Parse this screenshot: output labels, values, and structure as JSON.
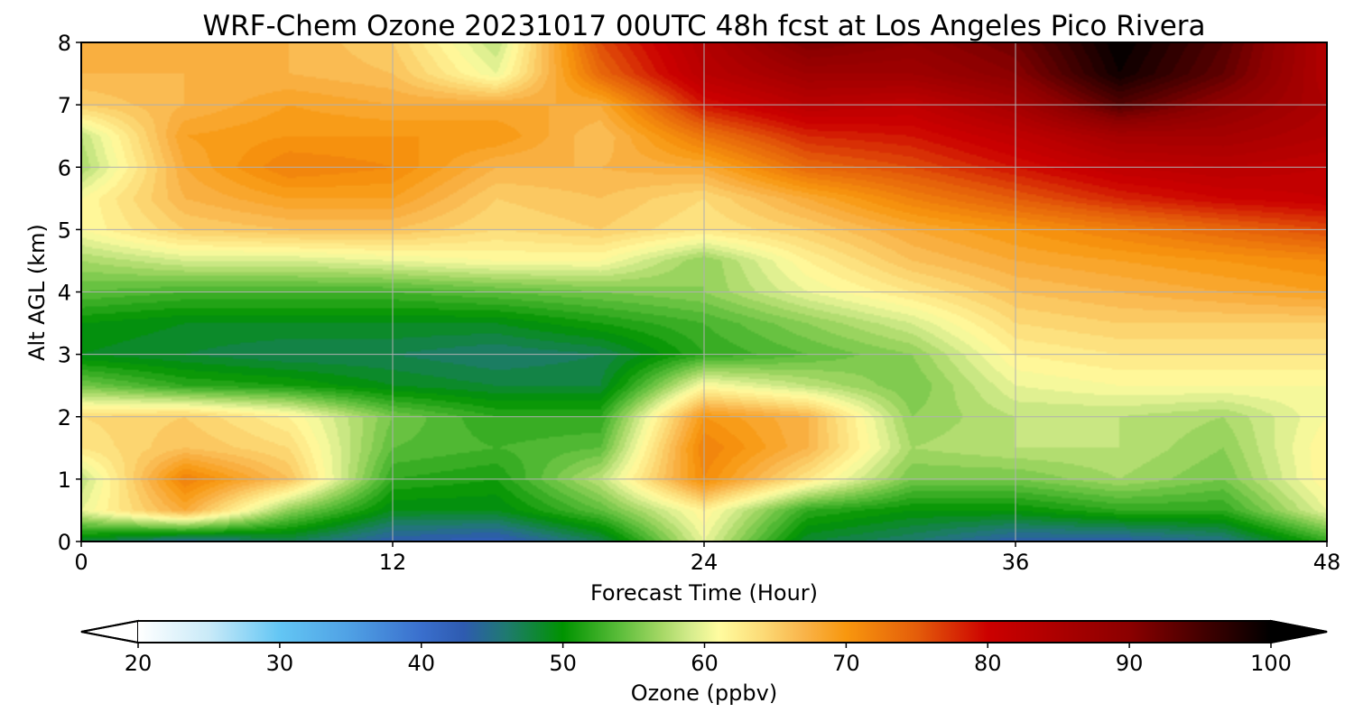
{
  "chart_data": {
    "type": "heatmap",
    "title": "WRF-Chem Ozone  20231017 00UTC 48h fcst at Los Angeles Pico Rivera",
    "xlabel": "Forecast Time (Hour)",
    "ylabel": "Alt AGL (km)",
    "xlim": [
      0,
      48
    ],
    "ylim": [
      0,
      8
    ],
    "x_ticks": [
      "0",
      "12",
      "24",
      "36",
      "48"
    ],
    "x_tick_values": [
      0,
      12,
      24,
      36,
      48
    ],
    "y_ticks": [
      "0",
      "1",
      "2",
      "3",
      "4",
      "5",
      "6",
      "7",
      "8"
    ],
    "y_tick_values": [
      0,
      1,
      2,
      3,
      4,
      5,
      6,
      7,
      8
    ],
    "grid": true,
    "x_hours": [
      0,
      4,
      8,
      12,
      16,
      20,
      24,
      28,
      32,
      36,
      40,
      44,
      48
    ],
    "y_km": [
      0,
      0.5,
      1,
      1.5,
      2,
      2.5,
      3,
      3.5,
      4,
      4.5,
      5,
      5.5,
      6,
      6.5,
      7,
      7.5,
      8
    ],
    "values_ppbv": [
      [
        48,
        44,
        47,
        43,
        42,
        47,
        60,
        48,
        46,
        43,
        43,
        45,
        52
      ],
      [
        60,
        68,
        56,
        49,
        49,
        54,
        62,
        52,
        50,
        50,
        52,
        52,
        60
      ],
      [
        58,
        72,
        66,
        52,
        51,
        58,
        71,
        63,
        55,
        55,
        57,
        55,
        62
      ],
      [
        63,
        66,
        64,
        54,
        53,
        54,
        72,
        67,
        57,
        58,
        58,
        56,
        62
      ],
      [
        64,
        65,
        62,
        55,
        52,
        52,
        70,
        67,
        56,
        58,
        58,
        57,
        61
      ],
      [
        55,
        52,
        51,
        49,
        48,
        48,
        61,
        58,
        55,
        60,
        61,
        61,
        61
      ],
      [
        49,
        48,
        47,
        47,
        46,
        47,
        52,
        54,
        56,
        62,
        63,
        63,
        63
      ],
      [
        50,
        49,
        49,
        49,
        49,
        51,
        53,
        56,
        59,
        64,
        65,
        65,
        65
      ],
      [
        54,
        53,
        53,
        53,
        54,
        55,
        56,
        60,
        63,
        66,
        67,
        68,
        69
      ],
      [
        57,
        59,
        59,
        60,
        61,
        61,
        56,
        62,
        66,
        68,
        69,
        70,
        71
      ],
      [
        61,
        65,
        66,
        66,
        64,
        65,
        63,
        65,
        68,
        70,
        72,
        74,
        76
      ],
      [
        61,
        67,
        69,
        69,
        65,
        66,
        64,
        68,
        72,
        75,
        78,
        80,
        81
      ],
      [
        57,
        68,
        72,
        71,
        67,
        67,
        68,
        74,
        76,
        79,
        82,
        83,
        82
      ],
      [
        58,
        69,
        70,
        70,
        70,
        66,
        73,
        78,
        79,
        82,
        86,
        86,
        84
      ],
      [
        65,
        67,
        69,
        68,
        68,
        68,
        79,
        83,
        82,
        86,
        94,
        89,
        85
      ],
      [
        67,
        67,
        67,
        66,
        60,
        74,
        83,
        87,
        87,
        90,
        99,
        93,
        84
      ],
      [
        68,
        67,
        67,
        65,
        58,
        76,
        84,
        91,
        89,
        92,
        100,
        94,
        84
      ]
    ],
    "colorbar": {
      "label": "Ozone  (ppbv)",
      "min": 20,
      "max": 100,
      "ticks": [
        "20",
        "30",
        "40",
        "50",
        "60",
        "70",
        "80",
        "90",
        "100"
      ],
      "tick_values": [
        20,
        30,
        40,
        50,
        60,
        70,
        80,
        90,
        100
      ],
      "extend": "both",
      "stops": [
        {
          "v": 20,
          "color": "#ffffff"
        },
        {
          "v": 25,
          "color": "#c9eaf8"
        },
        {
          "v": 30,
          "color": "#63c6f4"
        },
        {
          "v": 35,
          "color": "#4fa0e4"
        },
        {
          "v": 40,
          "color": "#3a6fcd"
        },
        {
          "v": 43,
          "color": "#2e5bb0"
        },
        {
          "v": 46,
          "color": "#1f7a70"
        },
        {
          "v": 50,
          "color": "#009300"
        },
        {
          "v": 54,
          "color": "#5bbd3a"
        },
        {
          "v": 57,
          "color": "#a6d866"
        },
        {
          "v": 59,
          "color": "#d5ec8c"
        },
        {
          "v": 61,
          "color": "#fffca0"
        },
        {
          "v": 64,
          "color": "#fcdc78"
        },
        {
          "v": 67,
          "color": "#f9b44a"
        },
        {
          "v": 70,
          "color": "#f8970e"
        },
        {
          "v": 75,
          "color": "#e45d0a"
        },
        {
          "v": 80,
          "color": "#cc0000"
        },
        {
          "v": 90,
          "color": "#8b0000"
        },
        {
          "v": 100,
          "color": "#000000"
        }
      ]
    }
  }
}
